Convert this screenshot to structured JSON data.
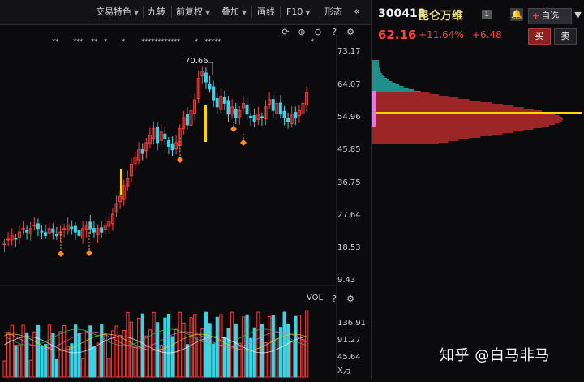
{
  "toolbar": {
    "trade_features": "交易特色",
    "nine_turn": "九转",
    "adjust": "前复权",
    "overlay": "叠加",
    "draw_line": "画线",
    "f10": "F10",
    "shape": "形态",
    "collapse_icon": "double-chevron-left-icon"
  },
  "chart_icons": [
    "refresh-icon",
    "zoom-in-icon",
    "zoom-out-icon",
    "help-icon",
    "settings-icon"
  ],
  "price_axis": [
    "73.17",
    "64.07",
    "54.96",
    "45.85",
    "36.75",
    "27.64",
    "18.53",
    "9.43"
  ],
  "high_marker": "70.66",
  "volume": {
    "label": "VOL",
    "ticks": [
      "136.91",
      "91.27",
      "45.64"
    ],
    "unit": "X万",
    "icons": [
      "help-icon",
      "settings-icon"
    ]
  },
  "signal_marks": "** ** * * ***** * ****",
  "stock": {
    "code": "300418",
    "name": "昆仑万维",
    "badge": "1",
    "price": "62.16",
    "change_pct": "+11.64%",
    "change": "+6.48"
  },
  "panel": {
    "add_watch": "自选",
    "buy": "买",
    "sell": "卖",
    "bell_icon": "bell-icon",
    "more_icon": "chevron-down-icon",
    "eye_icon": "eye-icon",
    "gear_icon": "gear-icon"
  },
  "watermark": "知乎 @白马非马",
  "colors": {
    "up": "#ff3b3b",
    "down": "#34d6e8",
    "chip_up": "#9c2626",
    "chip_down": "#1e8f8a",
    "line_yellow": "#ffd700"
  }
}
